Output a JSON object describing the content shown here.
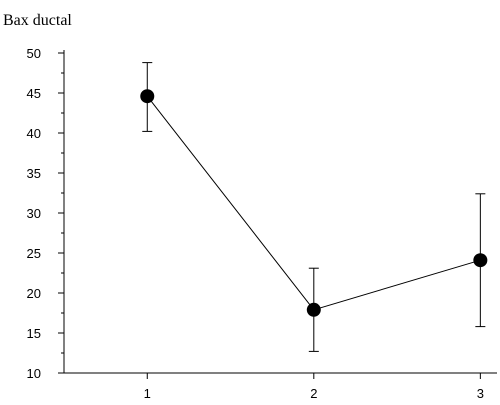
{
  "chart_data": {
    "type": "line",
    "title": "Bax ductal",
    "x": [
      1,
      2,
      3
    ],
    "x_tick_labels": [
      "1",
      "2",
      "3"
    ],
    "y_tick_labels": [
      "10",
      "15",
      "20",
      "25",
      "30",
      "35",
      "40",
      "45",
      "50"
    ],
    "ylim": [
      10,
      50
    ],
    "xlim": [
      0.5,
      3.1
    ],
    "y_ticks": [
      10,
      15,
      20,
      25,
      30,
      35,
      40,
      45,
      50
    ],
    "y_minor_step": 2.5,
    "series": [
      {
        "values": [
          44.6,
          17.9,
          24.1
        ],
        "error_low": [
          40.2,
          12.7,
          15.8
        ],
        "error_high": [
          48.8,
          23.1,
          32.4
        ]
      }
    ],
    "grid": false,
    "legend": "none"
  }
}
